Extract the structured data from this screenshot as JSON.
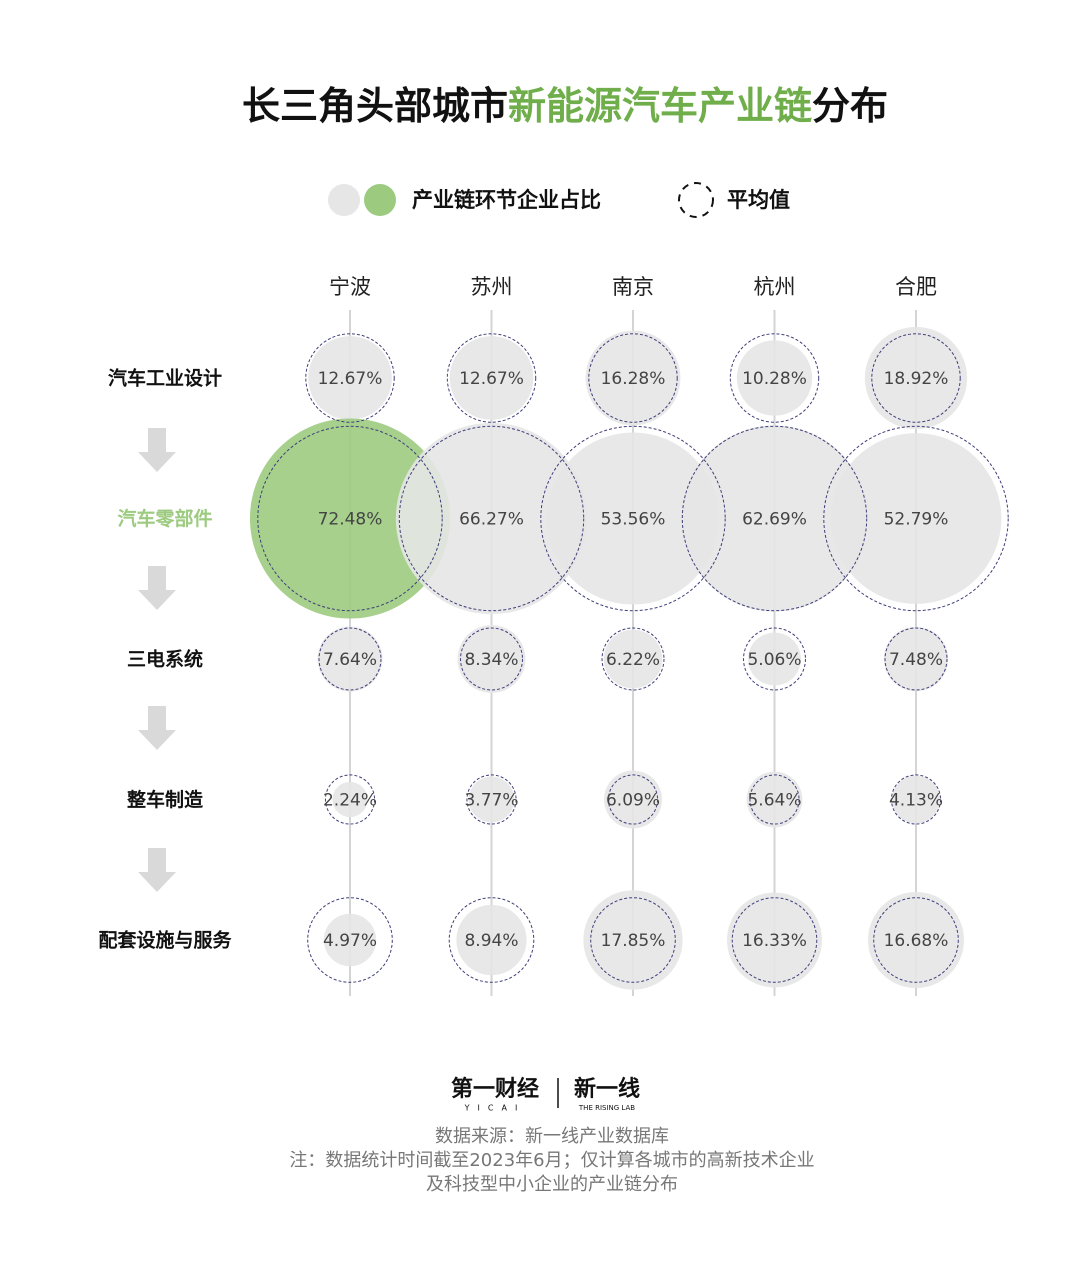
{
  "chart_data": {
    "type": "bubble-matrix",
    "title": [
      "长三角头部城市",
      "新能源汽车产业链",
      "分布"
    ],
    "title_colors": [
      "#111111",
      "#6fae4a",
      "#111111"
    ],
    "legend": {
      "value_label": "产业链环节企业占比",
      "average_label": "平均值"
    },
    "categories": [
      "宁波",
      "苏州",
      "南京",
      "杭州",
      "合肥"
    ],
    "color": "#e6e6e6",
    "highlight": {
      "series": 1,
      "category": 0,
      "color": "#9ccb7f"
    },
    "average_color": "#3f3f7a",
    "series": [
      {
        "name": "汽车工业设计",
        "values": [
          12.67,
          12.67,
          16.28,
          10.28,
          18.92
        ],
        "value_labels": [
          "12.67%",
          "12.67%",
          "16.28%",
          "10.28%",
          "18.92%"
        ],
        "average": 14.16
      },
      {
        "name": "汽车零部件",
        "values": [
          72.48,
          66.27,
          53.56,
          62.69,
          52.79
        ],
        "value_labels": [
          "72.48%",
          "66.27%",
          "53.56%",
          "62.69%",
          "52.79%"
        ],
        "average": 61.56
      },
      {
        "name": "三电系统",
        "values": [
          7.64,
          8.34,
          6.22,
          5.06,
          7.48
        ],
        "value_labels": [
          "7.64%",
          "8.34%",
          "6.22%",
          "5.06%",
          "7.48%"
        ],
        "average": 6.95
      },
      {
        "name": "整车制造",
        "values": [
          2.24,
          3.77,
          6.09,
          5.64,
          4.13
        ],
        "value_labels": [
          "2.24%",
          "3.77%",
          "6.09%",
          "5.64%",
          "4.13%"
        ],
        "average": 4.37
      },
      {
        "name": "配套设施与服务",
        "values": [
          4.97,
          8.94,
          17.85,
          16.33,
          16.68
        ],
        "value_labels": [
          "4.97%",
          "8.94%",
          "17.85%",
          "16.33%",
          "16.68%"
        ],
        "average": 12.95
      }
    ],
    "footer": {
      "logo_left": "第一财经",
      "logo_left_sub": "YICAI",
      "logo_right": "新一线",
      "logo_right_sub": "THE RISING LAB",
      "source": "数据来源：新一线产业数据库",
      "notes": [
        "注：数据统计时间截至2023年6月；仅计算各城市的高新技术企业",
        "及科技型中小企业的产业链分布"
      ]
    }
  }
}
